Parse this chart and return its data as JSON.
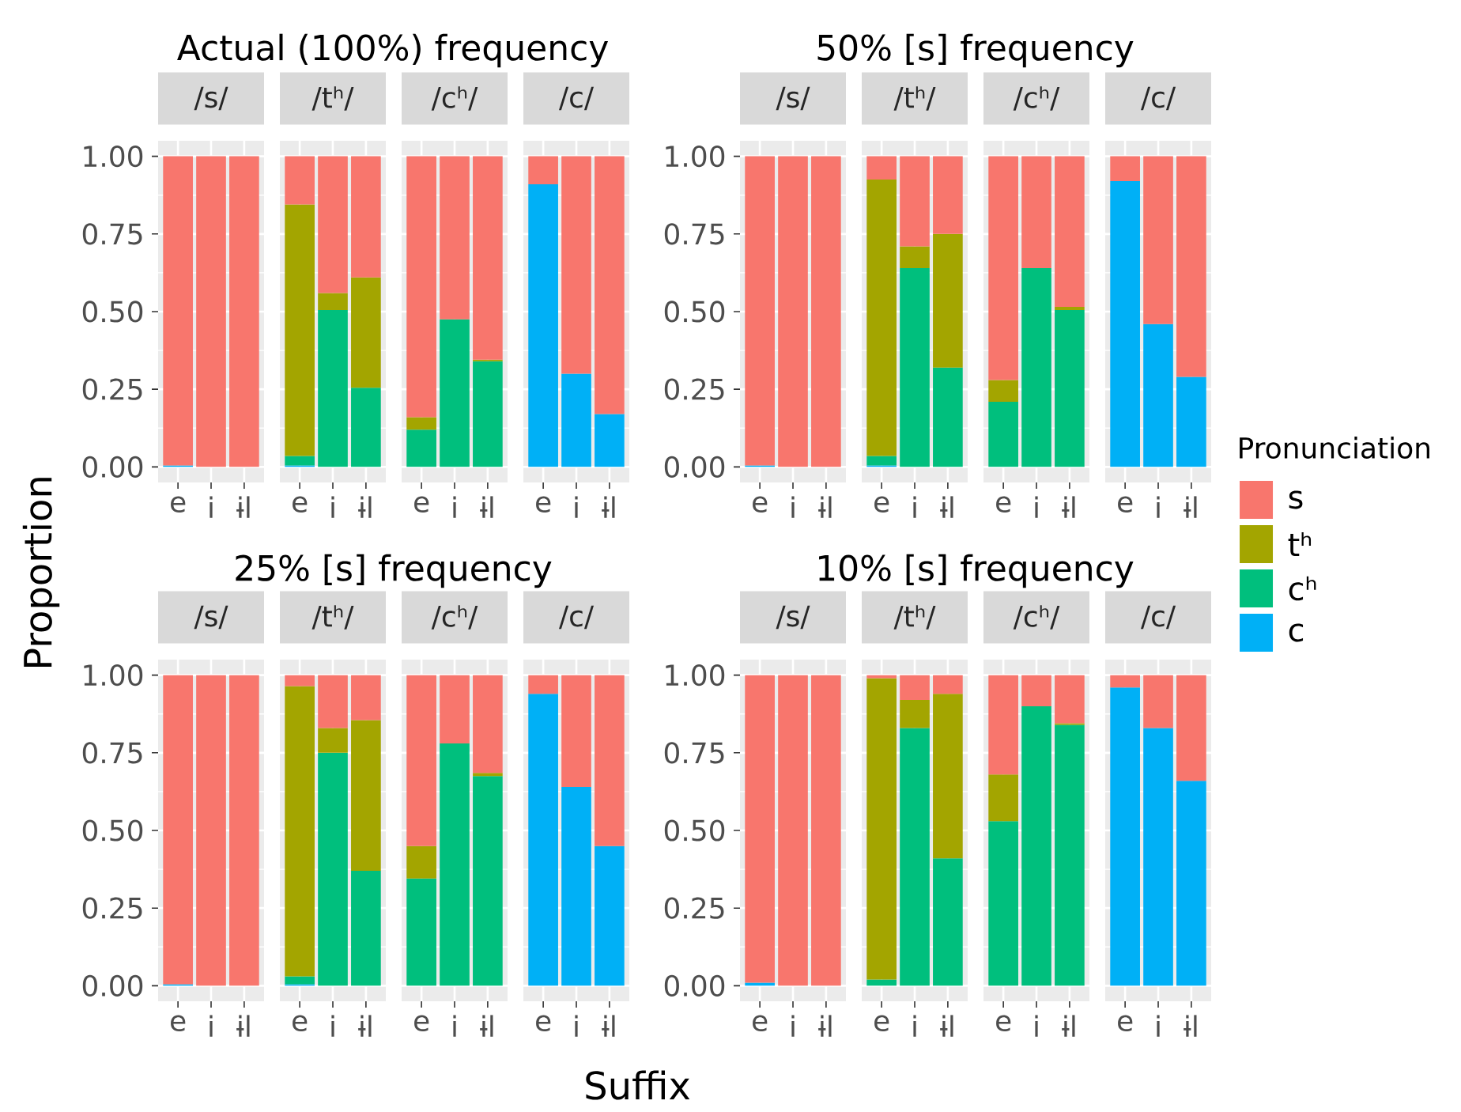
{
  "chart_data": [
    {
      "type": "bar",
      "stacked": true,
      "title": "/s/",
      "annotations": [
        "Actual (100%) frequency"
      ],
      "ylabel": "Proportion",
      "categories": [
        "e",
        "i",
        "ɨl"
      ],
      "ylim": [
        -0.05,
        1.05
      ],
      "yticks": [
        {
          "value": 0,
          "label": "0.00"
        },
        {
          "value": 0.25,
          "label": "0.25"
        },
        {
          "value": 0.5,
          "label": "0.50"
        },
        {
          "value": 0.75,
          "label": "0.75"
        },
        {
          "value": 1,
          "label": "1.00"
        }
      ],
      "grid": true,
      "series": [
        {
          "color": "#00b0f6",
          "values": [
            0.005,
            null,
            null
          ]
        },
        {
          "color": "#00bf7d",
          "values": [
            null,
            null,
            null
          ]
        },
        {
          "color": "#a3a500",
          "values": [
            null,
            null,
            null
          ]
        },
        {
          "color": "#f8766d",
          "values": [
            0.995,
            1,
            1
          ]
        }
      ]
    },
    {
      "type": "bar",
      "stacked": true,
      "title": "/tʰ/",
      "tick_labels": "x",
      "categories": [
        "e",
        "i",
        "ɨl"
      ],
      "ylim": [
        -0.05,
        1.05
      ],
      "yticks": [
        {
          "value": 0,
          "label": null
        },
        {
          "value": 0.25,
          "label": null
        },
        {
          "value": 0.5,
          "label": null
        },
        {
          "value": 0.75,
          "label": null
        },
        {
          "value": 1,
          "label": null
        }
      ],
      "grid": true,
      "series": [
        {
          "color": "#00b0f6",
          "values": [
            0.005,
            null,
            null
          ]
        },
        {
          "color": "#00bf7d",
          "values": [
            0.03,
            0.505,
            0.255
          ]
        },
        {
          "color": "#a3a500",
          "values": [
            0.81,
            0.055,
            0.355
          ]
        },
        {
          "color": "#f8766d",
          "values": [
            0.155,
            0.44,
            0.39
          ]
        }
      ]
    },
    {
      "type": "bar",
      "stacked": true,
      "title": "/cʰ/",
      "tick_labels": "x",
      "categories": [
        "e",
        "i",
        "ɨl"
      ],
      "ylim": [
        -0.05,
        1.05
      ],
      "yticks": [
        {
          "value": 0,
          "label": null
        },
        {
          "value": 0.25,
          "label": null
        },
        {
          "value": 0.5,
          "label": null
        },
        {
          "value": 0.75,
          "label": null
        },
        {
          "value": 1,
          "label": null
        }
      ],
      "grid": true,
      "series": [
        {
          "color": "#00b0f6",
          "values": [
            null,
            null,
            null
          ]
        },
        {
          "color": "#00bf7d",
          "values": [
            0.12,
            0.475,
            0.34
          ]
        },
        {
          "color": "#a3a500",
          "values": [
            0.04,
            null,
            0.005
          ]
        },
        {
          "color": "#f8766d",
          "values": [
            0.84,
            0.525,
            0.655
          ]
        }
      ]
    },
    {
      "type": "bar",
      "stacked": true,
      "title": "/c/",
      "tick_labels": "x",
      "categories": [
        "e",
        "i",
        "ɨl"
      ],
      "ylim": [
        -0.05,
        1.05
      ],
      "yticks": [
        {
          "value": 0,
          "label": null
        },
        {
          "value": 0.25,
          "label": null
        },
        {
          "value": 0.5,
          "label": null
        },
        {
          "value": 0.75,
          "label": null
        },
        {
          "value": 1,
          "label": null
        }
      ],
      "grid": true,
      "series": [
        {
          "color": "#00b0f6",
          "values": [
            0.91,
            0.3,
            0.17
          ]
        },
        {
          "color": "#00bf7d",
          "values": [
            null,
            null,
            null
          ]
        },
        {
          "color": "#a3a500",
          "values": [
            null,
            null,
            null
          ]
        },
        {
          "color": "#f8766d",
          "values": [
            0.09,
            0.7,
            0.83
          ]
        }
      ]
    },
    {
      "type": "bar",
      "stacked": true,
      "title": "/s/",
      "annotations": [
        "50% [s] frequency"
      ],
      "categories": [
        "e",
        "i",
        "ɨl"
      ],
      "ylim": [
        -0.05,
        1.05
      ],
      "yticks": [
        {
          "value": 0,
          "label": "0.00"
        },
        {
          "value": 0.25,
          "label": "0.25"
        },
        {
          "value": 0.5,
          "label": "0.50"
        },
        {
          "value": 0.75,
          "label": "0.75"
        },
        {
          "value": 1,
          "label": "1.00"
        }
      ],
      "grid": true,
      "series": [
        {
          "color": "#00b0f6",
          "values": [
            0.005,
            null,
            null
          ]
        },
        {
          "color": "#00bf7d",
          "values": [
            null,
            null,
            null
          ]
        },
        {
          "color": "#a3a500",
          "values": [
            null,
            null,
            null
          ]
        },
        {
          "color": "#f8766d",
          "values": [
            0.995,
            1,
            1
          ]
        }
      ]
    },
    {
      "type": "bar",
      "stacked": true,
      "title": "/tʰ/",
      "tick_labels": "x",
      "categories": [
        "e",
        "i",
        "ɨl"
      ],
      "ylim": [
        -0.05,
        1.05
      ],
      "yticks": [
        {
          "value": 0,
          "label": null
        },
        {
          "value": 0.25,
          "label": null
        },
        {
          "value": 0.5,
          "label": null
        },
        {
          "value": 0.75,
          "label": null
        },
        {
          "value": 1,
          "label": null
        }
      ],
      "grid": true,
      "series": [
        {
          "color": "#00b0f6",
          "values": [
            0.005,
            null,
            null
          ]
        },
        {
          "color": "#00bf7d",
          "values": [
            0.03,
            0.64,
            0.32
          ]
        },
        {
          "color": "#a3a500",
          "values": [
            0.89,
            0.07,
            0.43
          ]
        },
        {
          "color": "#f8766d",
          "values": [
            0.075,
            0.29,
            0.25
          ]
        }
      ]
    },
    {
      "type": "bar",
      "stacked": true,
      "title": "/cʰ/",
      "tick_labels": "x",
      "categories": [
        "e",
        "i",
        "ɨl"
      ],
      "ylim": [
        -0.05,
        1.05
      ],
      "yticks": [
        {
          "value": 0,
          "label": null
        },
        {
          "value": 0.25,
          "label": null
        },
        {
          "value": 0.5,
          "label": null
        },
        {
          "value": 0.75,
          "label": null
        },
        {
          "value": 1,
          "label": null
        }
      ],
      "grid": true,
      "series": [
        {
          "color": "#00b0f6",
          "values": [
            null,
            null,
            null
          ]
        },
        {
          "color": "#00bf7d",
          "values": [
            0.21,
            0.64,
            0.505
          ]
        },
        {
          "color": "#a3a500",
          "values": [
            0.07,
            null,
            0.01
          ]
        },
        {
          "color": "#f8766d",
          "values": [
            0.72,
            0.36,
            0.485
          ]
        }
      ]
    },
    {
      "type": "bar",
      "stacked": true,
      "title": "/c/",
      "tick_labels": "x",
      "legend": "right",
      "legend_title": "Pronunciation",
      "categories": [
        "e",
        "i",
        "ɨl"
      ],
      "ylim": [
        -0.05,
        1.05
      ],
      "yticks": [
        {
          "value": 0,
          "label": null
        },
        {
          "value": 0.25,
          "label": null
        },
        {
          "value": 0.5,
          "label": null
        },
        {
          "value": 0.75,
          "label": null
        },
        {
          "value": 1,
          "label": null
        }
      ],
      "grid": true,
      "series": [
        {
          "name": "c",
          "color": "#00b0f6",
          "values": [
            0.92,
            0.46,
            0.29
          ]
        },
        {
          "name": "cʰ",
          "color": "#00bf7d",
          "values": [
            null,
            null,
            null
          ]
        },
        {
          "name": "tʰ",
          "color": "#a3a500",
          "values": [
            null,
            null,
            null
          ]
        },
        {
          "name": "s",
          "color": "#f8766d",
          "values": [
            0.08,
            0.54,
            0.71
          ]
        }
      ]
    },
    {
      "type": "bar",
      "stacked": true,
      "title": "/s/",
      "annotations": [
        "25% [s] frequency"
      ],
      "categories": [
        "e",
        "i",
        "ɨl"
      ],
      "ylim": [
        -0.05,
        1.05
      ],
      "yticks": [
        {
          "value": 0,
          "label": "0.00"
        },
        {
          "value": 0.25,
          "label": "0.25"
        },
        {
          "value": 0.5,
          "label": "0.50"
        },
        {
          "value": 0.75,
          "label": "0.75"
        },
        {
          "value": 1,
          "label": "1.00"
        }
      ],
      "grid": true,
      "series": [
        {
          "color": "#00b0f6",
          "values": [
            0.005,
            null,
            null
          ]
        },
        {
          "color": "#00bf7d",
          "values": [
            null,
            null,
            null
          ]
        },
        {
          "color": "#a3a500",
          "values": [
            null,
            null,
            null
          ]
        },
        {
          "color": "#f8766d",
          "values": [
            0.995,
            1,
            1
          ]
        }
      ]
    },
    {
      "type": "bar",
      "stacked": true,
      "title": "/tʰ/",
      "tick_labels": "x",
      "categories": [
        "e",
        "i",
        "ɨl"
      ],
      "ylim": [
        -0.05,
        1.05
      ],
      "yticks": [
        {
          "value": 0,
          "label": null
        },
        {
          "value": 0.25,
          "label": null
        },
        {
          "value": 0.5,
          "label": null
        },
        {
          "value": 0.75,
          "label": null
        },
        {
          "value": 1,
          "label": null
        }
      ],
      "grid": true,
      "series": [
        {
          "color": "#00b0f6",
          "values": [
            0.005,
            null,
            null
          ]
        },
        {
          "color": "#00bf7d",
          "values": [
            0.025,
            0.75,
            0.37
          ]
        },
        {
          "color": "#a3a500",
          "values": [
            0.935,
            0.08,
            0.485
          ]
        },
        {
          "color": "#f8766d",
          "values": [
            0.035,
            0.17,
            0.145
          ]
        }
      ]
    },
    {
      "type": "bar",
      "stacked": true,
      "title": "/cʰ/",
      "tick_labels": "x",
      "categories": [
        "e",
        "i",
        "ɨl"
      ],
      "ylim": [
        -0.05,
        1.05
      ],
      "yticks": [
        {
          "value": 0,
          "label": null
        },
        {
          "value": 0.25,
          "label": null
        },
        {
          "value": 0.5,
          "label": null
        },
        {
          "value": 0.75,
          "label": null
        },
        {
          "value": 1,
          "label": null
        }
      ],
      "grid": true,
      "series": [
        {
          "color": "#00b0f6",
          "values": [
            null,
            null,
            null
          ]
        },
        {
          "color": "#00bf7d",
          "values": [
            0.345,
            0.78,
            0.675
          ]
        },
        {
          "color": "#a3a500",
          "values": [
            0.105,
            null,
            0.01
          ]
        },
        {
          "color": "#f8766d",
          "values": [
            0.55,
            0.22,
            0.315
          ]
        }
      ]
    },
    {
      "type": "bar",
      "stacked": true,
      "title": "/c/",
      "tick_labels": "x",
      "xlabel": "Suffix",
      "categories": [
        "e",
        "i",
        "ɨl"
      ],
      "ylim": [
        -0.05,
        1.05
      ],
      "yticks": [
        {
          "value": 0,
          "label": null
        },
        {
          "value": 0.25,
          "label": null
        },
        {
          "value": 0.5,
          "label": null
        },
        {
          "value": 0.75,
          "label": null
        },
        {
          "value": 1,
          "label": null
        }
      ],
      "grid": true,
      "series": [
        {
          "color": "#00b0f6",
          "values": [
            0.94,
            0.64,
            0.45
          ]
        },
        {
          "color": "#00bf7d",
          "values": [
            null,
            null,
            null
          ]
        },
        {
          "color": "#a3a500",
          "values": [
            null,
            null,
            null
          ]
        },
        {
          "color": "#f8766d",
          "values": [
            0.06,
            0.36,
            0.55
          ]
        }
      ]
    },
    {
      "type": "bar",
      "stacked": true,
      "title": "/s/",
      "annotations": [
        "10% [s] frequency"
      ],
      "categories": [
        "e",
        "i",
        "ɨl"
      ],
      "ylim": [
        -0.05,
        1.05
      ],
      "yticks": [
        {
          "value": 0,
          "label": "0.00"
        },
        {
          "value": 0.25,
          "label": "0.25"
        },
        {
          "value": 0.5,
          "label": "0.50"
        },
        {
          "value": 0.75,
          "label": "0.75"
        },
        {
          "value": 1,
          "label": "1.00"
        }
      ],
      "grid": true,
      "series": [
        {
          "color": "#00b0f6",
          "values": [
            0.01,
            null,
            null
          ]
        },
        {
          "color": "#00bf7d",
          "values": [
            null,
            null,
            null
          ]
        },
        {
          "color": "#a3a500",
          "values": [
            null,
            null,
            null
          ]
        },
        {
          "color": "#f8766d",
          "values": [
            0.99,
            1,
            1
          ]
        }
      ]
    },
    {
      "type": "bar",
      "stacked": true,
      "title": "/tʰ/",
      "tick_labels": "x",
      "categories": [
        "e",
        "i",
        "ɨl"
      ],
      "ylim": [
        -0.05,
        1.05
      ],
      "yticks": [
        {
          "value": 0,
          "label": null
        },
        {
          "value": 0.25,
          "label": null
        },
        {
          "value": 0.5,
          "label": null
        },
        {
          "value": 0.75,
          "label": null
        },
        {
          "value": 1,
          "label": null
        }
      ],
      "grid": true,
      "series": [
        {
          "color": "#00b0f6",
          "values": [
            null,
            null,
            null
          ]
        },
        {
          "color": "#00bf7d",
          "values": [
            0.02,
            0.83,
            0.41
          ]
        },
        {
          "color": "#a3a500",
          "values": [
            0.97,
            0.09,
            0.53
          ]
        },
        {
          "color": "#f8766d",
          "values": [
            0.01,
            0.08,
            0.06
          ]
        }
      ]
    },
    {
      "type": "bar",
      "stacked": true,
      "title": "/cʰ/",
      "tick_labels": "x",
      "categories": [
        "e",
        "i",
        "ɨl"
      ],
      "ylim": [
        -0.05,
        1.05
      ],
      "yticks": [
        {
          "value": 0,
          "label": null
        },
        {
          "value": 0.25,
          "label": null
        },
        {
          "value": 0.5,
          "label": null
        },
        {
          "value": 0.75,
          "label": null
        },
        {
          "value": 1,
          "label": null
        }
      ],
      "grid": true,
      "series": [
        {
          "color": "#00b0f6",
          "values": [
            null,
            null,
            null
          ]
        },
        {
          "color": "#00bf7d",
          "values": [
            0.53,
            0.9,
            0.84
          ]
        },
        {
          "color": "#a3a500",
          "values": [
            0.15,
            null,
            0.005
          ]
        },
        {
          "color": "#f8766d",
          "values": [
            0.32,
            0.1,
            0.155
          ]
        }
      ]
    },
    {
      "type": "bar",
      "stacked": true,
      "title": "/c/",
      "tick_labels": "x",
      "categories": [
        "e",
        "i",
        "ɨl"
      ],
      "ylim": [
        -0.05,
        1.05
      ],
      "yticks": [
        {
          "value": 0,
          "label": null
        },
        {
          "value": 0.25,
          "label": null
        },
        {
          "value": 0.5,
          "label": null
        },
        {
          "value": 0.75,
          "label": null
        },
        {
          "value": 1,
          "label": null
        }
      ],
      "grid": true,
      "series": [
        {
          "color": "#00b0f6",
          "values": [
            0.96,
            0.83,
            0.66
          ]
        },
        {
          "color": "#00bf7d",
          "values": [
            null,
            null,
            null
          ]
        },
        {
          "color": "#a3a500",
          "values": [
            null,
            null,
            null
          ]
        },
        {
          "color": "#f8766d",
          "values": [
            0.04,
            0.17,
            0.34
          ]
        }
      ]
    }
  ]
}
